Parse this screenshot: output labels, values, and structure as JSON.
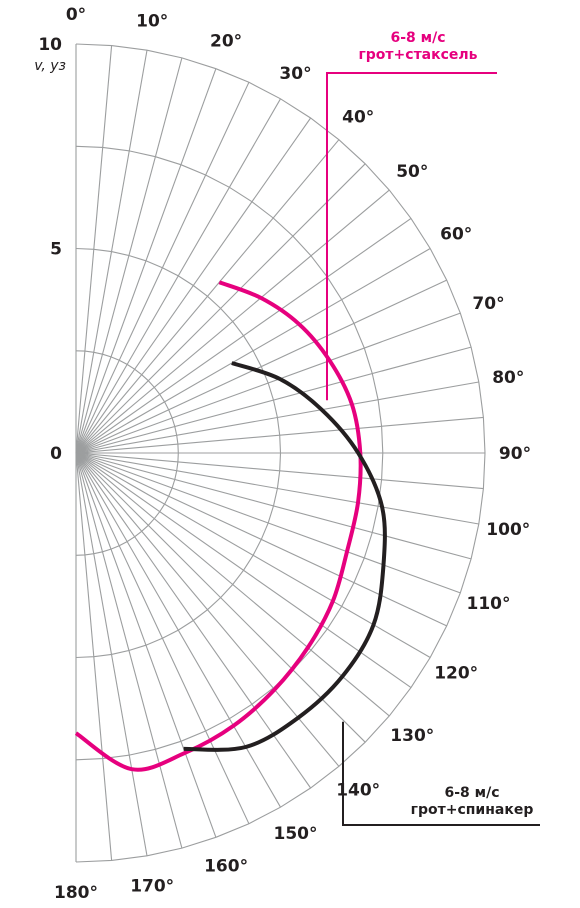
{
  "chart_data": {
    "type": "polar-line",
    "radial_axis": {
      "range": [
        0,
        10
      ],
      "rings": [
        2.5,
        5,
        7.5,
        10
      ],
      "tick_labels": [
        {
          "value": 0,
          "text": "0"
        },
        {
          "value": 5,
          "text": "5"
        },
        {
          "value": 10,
          "text": "10"
        }
      ],
      "unit": "v, уз"
    },
    "angular_axis": {
      "range_deg": [
        0,
        180
      ],
      "spoke_step_deg": 5,
      "tick_labels": [
        {
          "angle": 0,
          "text": "0°"
        },
        {
          "angle": 10,
          "text": "10°"
        },
        {
          "angle": 20,
          "text": "20°"
        },
        {
          "angle": 30,
          "text": "30°"
        },
        {
          "angle": 40,
          "text": "40°"
        },
        {
          "angle": 50,
          "text": "50°"
        },
        {
          "angle": 60,
          "text": "60°"
        },
        {
          "angle": 70,
          "text": "70°"
        },
        {
          "angle": 80,
          "text": "80°"
        },
        {
          "angle": 90,
          "text": "90°"
        },
        {
          "angle": 100,
          "text": "100°"
        },
        {
          "angle": 110,
          "text": "110°"
        },
        {
          "angle": 120,
          "text": "120°"
        },
        {
          "angle": 130,
          "text": "130°"
        },
        {
          "angle": 140,
          "text": "140°"
        },
        {
          "angle": 150,
          "text": "150°"
        },
        {
          "angle": 160,
          "text": "160°"
        },
        {
          "angle": 170,
          "text": "170°"
        },
        {
          "angle": 180,
          "text": "180°"
        }
      ]
    },
    "series": [
      {
        "name": "6-8 м/с грот+стаксель",
        "name_lines": [
          "6-8 м/с",
          "грот+стаксель"
        ],
        "color": "#e6007e",
        "points": [
          {
            "angle": 40,
            "v": 5.45
          },
          {
            "angle": 50,
            "v": 5.9
          },
          {
            "angle": 60,
            "v": 6.3
          },
          {
            "angle": 70,
            "v": 6.6
          },
          {
            "angle": 80,
            "v": 6.85
          },
          {
            "angle": 90,
            "v": 6.95
          },
          {
            "angle": 100,
            "v": 7.0
          },
          {
            "angle": 110,
            "v": 7.05
          },
          {
            "angle": 120,
            "v": 7.25
          },
          {
            "angle": 130,
            "v": 7.4
          },
          {
            "angle": 140,
            "v": 7.55
          },
          {
            "angle": 150,
            "v": 7.7
          },
          {
            "angle": 160,
            "v": 7.8
          },
          {
            "angle": 170,
            "v": 7.85
          },
          {
            "angle": 180,
            "v": 6.85
          }
        ]
      },
      {
        "name": "6-8 м/с грот+спинакер",
        "name_lines": [
          "6-8 м/с",
          "грот+спинакер"
        ],
        "color": "#231f20",
        "points": [
          {
            "angle": 60,
            "v": 4.4
          },
          {
            "angle": 70,
            "v": 5.3
          },
          {
            "angle": 80,
            "v": 6.1
          },
          {
            "angle": 90,
            "v": 6.9
          },
          {
            "angle": 100,
            "v": 7.6
          },
          {
            "angle": 110,
            "v": 8.0
          },
          {
            "angle": 120,
            "v": 8.4
          },
          {
            "angle": 130,
            "v": 8.5
          },
          {
            "angle": 140,
            "v": 8.45
          },
          {
            "angle": 150,
            "v": 8.3
          },
          {
            "angle": 160,
            "v": 7.7
          }
        ]
      }
    ],
    "grid_color": "#9c9e9f"
  }
}
